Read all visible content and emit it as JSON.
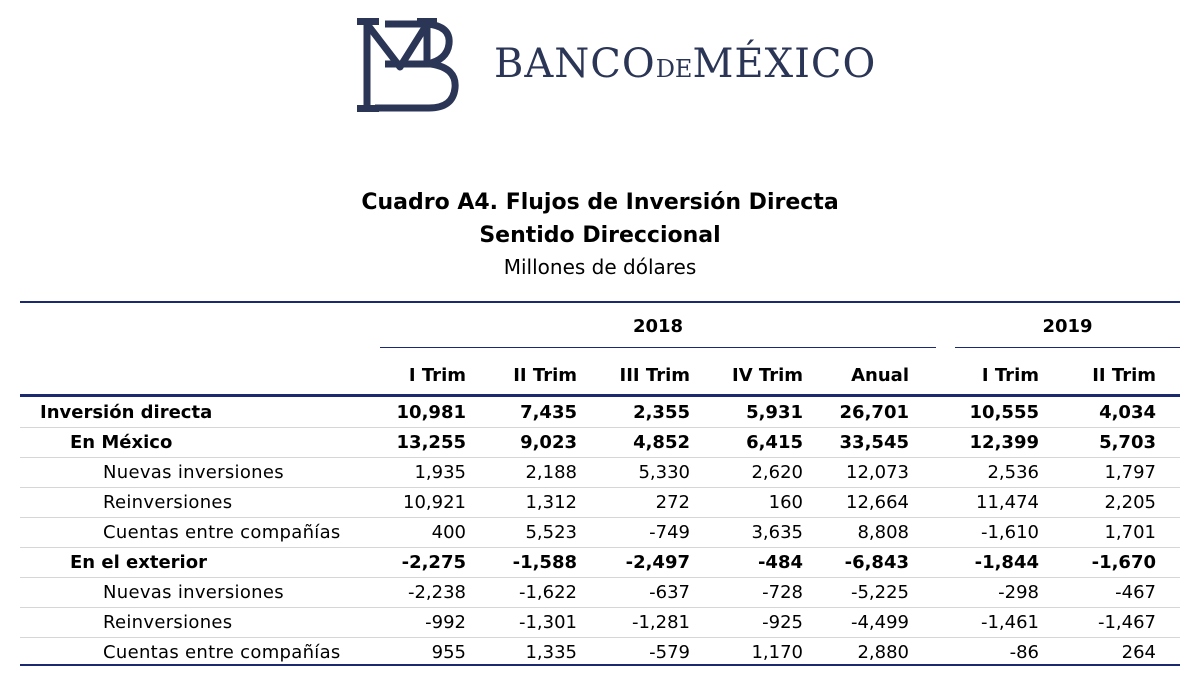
{
  "header": {
    "brand_main": "BANCO",
    "brand_small": "DE",
    "brand_end": "MÉXICO",
    "logo_text": "BM"
  },
  "titles": {
    "line1": "Cuadro A4. Flujos de Inversión Directa",
    "line2": "Sentido Direccional",
    "line3": "Millones de dólares"
  },
  "table": {
    "year_groups": [
      "2018",
      "2019"
    ],
    "columns": [
      "I Trim",
      "II Trim",
      "III Trim",
      "IV Trim",
      "Anual",
      "I Trim",
      "II Trim"
    ],
    "rows": [
      {
        "label": "Inversión directa",
        "values": [
          "10,981",
          "7,435",
          "2,355",
          "5,931",
          "26,701",
          "10,555",
          "4,034"
        ]
      },
      {
        "label": "En México",
        "values": [
          "13,255",
          "9,023",
          "4,852",
          "6,415",
          "33,545",
          "12,399",
          "5,703"
        ]
      },
      {
        "label": "Nuevas inversiones",
        "values": [
          "1,935",
          "2,188",
          "5,330",
          "2,620",
          "12,073",
          "2,536",
          "1,797"
        ]
      },
      {
        "label": "Reinversiones",
        "values": [
          "10,921",
          "1,312",
          "272",
          "160",
          "12,664",
          "11,474",
          "2,205"
        ]
      },
      {
        "label": "Cuentas entre compañías",
        "values": [
          "400",
          "5,523",
          "-749",
          "3,635",
          "8,808",
          "-1,610",
          "1,701"
        ]
      },
      {
        "label": "En el exterior",
        "values": [
          "-2,275",
          "-1,588",
          "-2,497",
          "-484",
          "-6,843",
          "-1,844",
          "-1,670"
        ]
      },
      {
        "label": "Nuevas inversiones",
        "values": [
          "-2,238",
          "-1,622",
          "-637",
          "-728",
          "-5,225",
          "-298",
          "-467"
        ]
      },
      {
        "label": "Reinversiones",
        "values": [
          "-992",
          "-1,301",
          "-1,281",
          "-925",
          "-4,499",
          "-1,461",
          "-1,467"
        ]
      },
      {
        "label": "Cuentas entre compañías",
        "values": [
          "955",
          "1,335",
          "-579",
          "1,170",
          "2,880",
          "-86",
          "264"
        ]
      }
    ]
  },
  "colors": {
    "brand": "#2b3656",
    "rule": "#1b2a6e"
  }
}
